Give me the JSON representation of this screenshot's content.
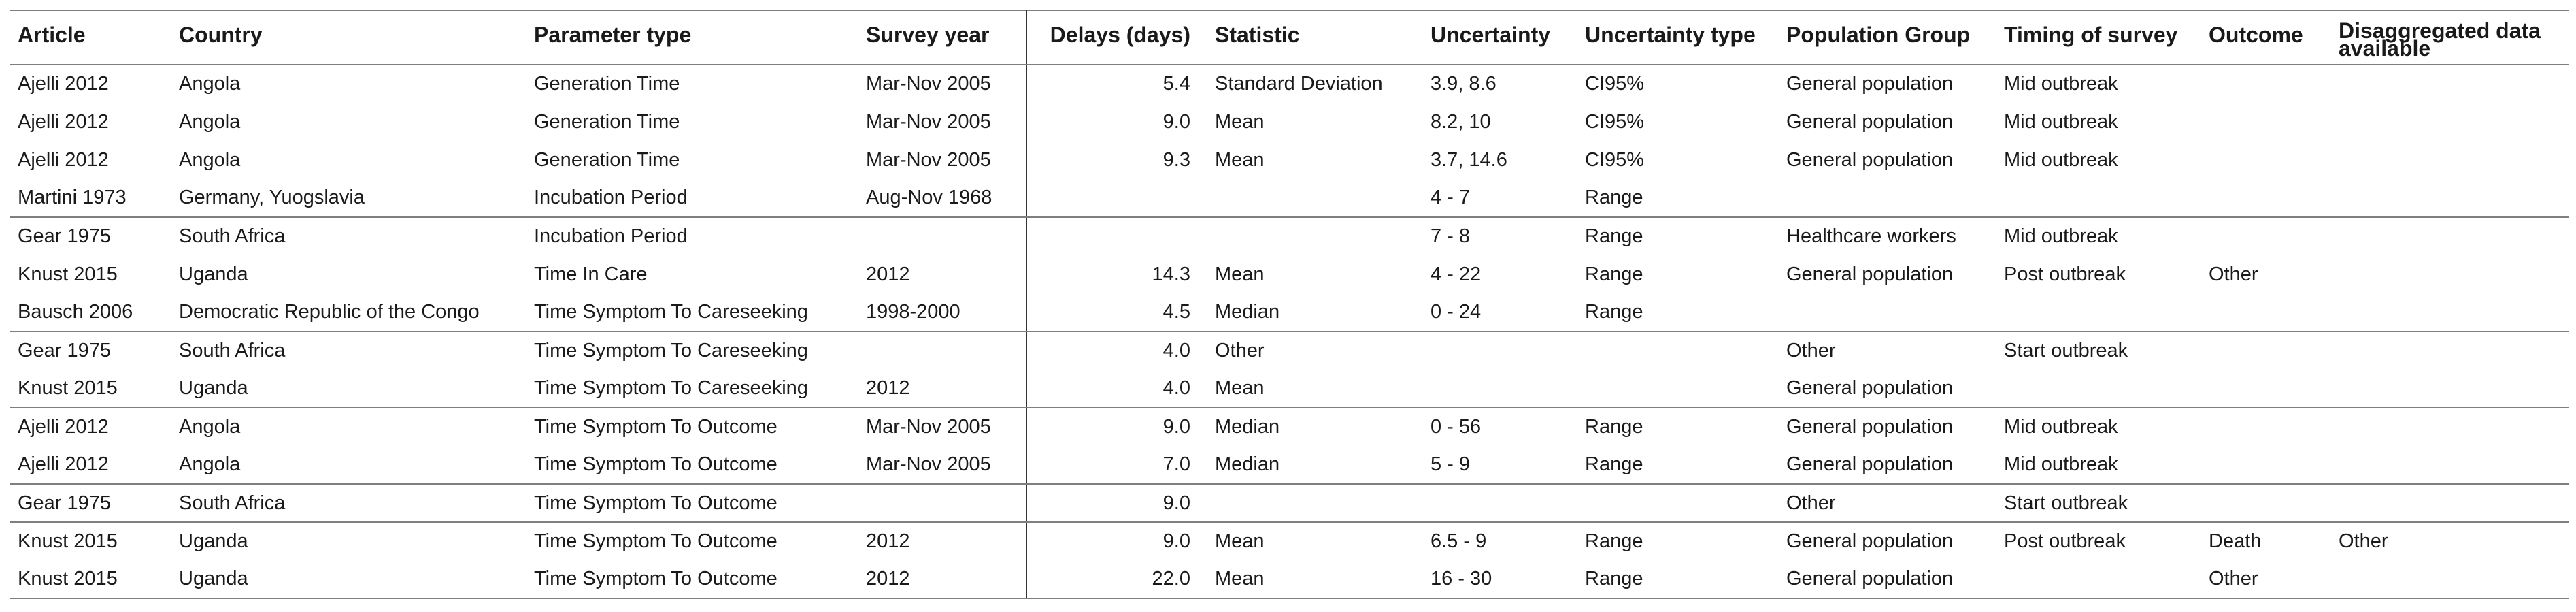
{
  "columns": [
    "Article",
    "Country",
    "Parameter type",
    "Survey year",
    "Delays (days)",
    "Statistic",
    "Uncertainty",
    "Uncertainty type",
    "Population Group",
    "Timing of survey",
    "Outcome",
    "Disaggregated data available"
  ],
  "rows": [
    [
      "Ajelli 2012",
      "Angola",
      "Generation Time",
      "Mar-Nov 2005",
      "5.4",
      "Standard Deviation",
      "3.9, 8.6",
      "CI95%",
      "General population",
      "Mid outbreak",
      "",
      ""
    ],
    [
      "Ajelli 2012",
      "Angola",
      "Generation Time",
      "Mar-Nov 2005",
      "9.0",
      "Mean",
      "8.2, 10",
      "CI95%",
      "General population",
      "Mid outbreak",
      "",
      ""
    ],
    [
      "Ajelli 2012",
      "Angola",
      "Generation Time",
      "Mar-Nov 2005",
      "9.3",
      "Mean",
      "3.7, 14.6",
      "CI95%",
      "General population",
      "Mid outbreak",
      "",
      ""
    ],
    [
      "Martini 1973",
      "Germany, Yuogslavia",
      "Incubation Period",
      "Aug-Nov 1968",
      "",
      "",
      "4 - 7",
      "Range",
      "",
      "",
      "",
      ""
    ],
    [
      "Gear 1975",
      "South Africa",
      "Incubation Period",
      "",
      "",
      "",
      "7 - 8",
      "Range",
      "Healthcare workers",
      "Mid outbreak",
      "",
      ""
    ],
    [
      "Knust 2015",
      "Uganda",
      "Time In Care",
      "2012",
      "14.3",
      "Mean",
      "4 - 22",
      "Range",
      "General population",
      "Post outbreak",
      "Other",
      ""
    ],
    [
      "Bausch 2006",
      "Democratic Republic of the Congo",
      "Time Symptom To Careseeking",
      "1998-2000",
      "4.5",
      "Median",
      "0 - 24",
      "Range",
      "",
      "",
      "",
      ""
    ],
    [
      "Gear 1975",
      "South Africa",
      "Time Symptom To Careseeking",
      "",
      "4.0",
      "Other",
      "",
      "",
      "Other",
      "Start outbreak",
      "",
      ""
    ],
    [
      "Knust 2015",
      "Uganda",
      "Time Symptom To Careseeking",
      "2012",
      "4.0",
      "Mean",
      "",
      "",
      "General population",
      "",
      "",
      ""
    ],
    [
      "Ajelli 2012",
      "Angola",
      "Time Symptom To Outcome",
      "Mar-Nov 2005",
      "9.0",
      "Median",
      "0 - 56",
      "Range",
      "General population",
      "Mid outbreak",
      "",
      ""
    ],
    [
      "Ajelli 2012",
      "Angola",
      "Time Symptom To Outcome",
      "Mar-Nov 2005",
      "7.0",
      "Median",
      "5 - 9",
      "Range",
      "General population",
      "Mid outbreak",
      "",
      ""
    ],
    [
      "Gear 1975",
      "South Africa",
      "Time Symptom To Outcome",
      "",
      "9.0",
      "",
      "",
      "",
      "Other",
      "Start outbreak",
      "",
      ""
    ],
    [
      "Knust 2015",
      "Uganda",
      "Time Symptom To Outcome",
      "2012",
      "9.0",
      "Mean",
      "6.5 - 9",
      "Range",
      "General population",
      "Post outbreak",
      "Death",
      "Other"
    ],
    [
      "Knust 2015",
      "Uganda",
      "Time Symptom To Outcome",
      "2012",
      "22.0",
      "Mean",
      "16 - 30",
      "Range",
      "General population",
      "",
      "Other",
      ""
    ]
  ]
}
